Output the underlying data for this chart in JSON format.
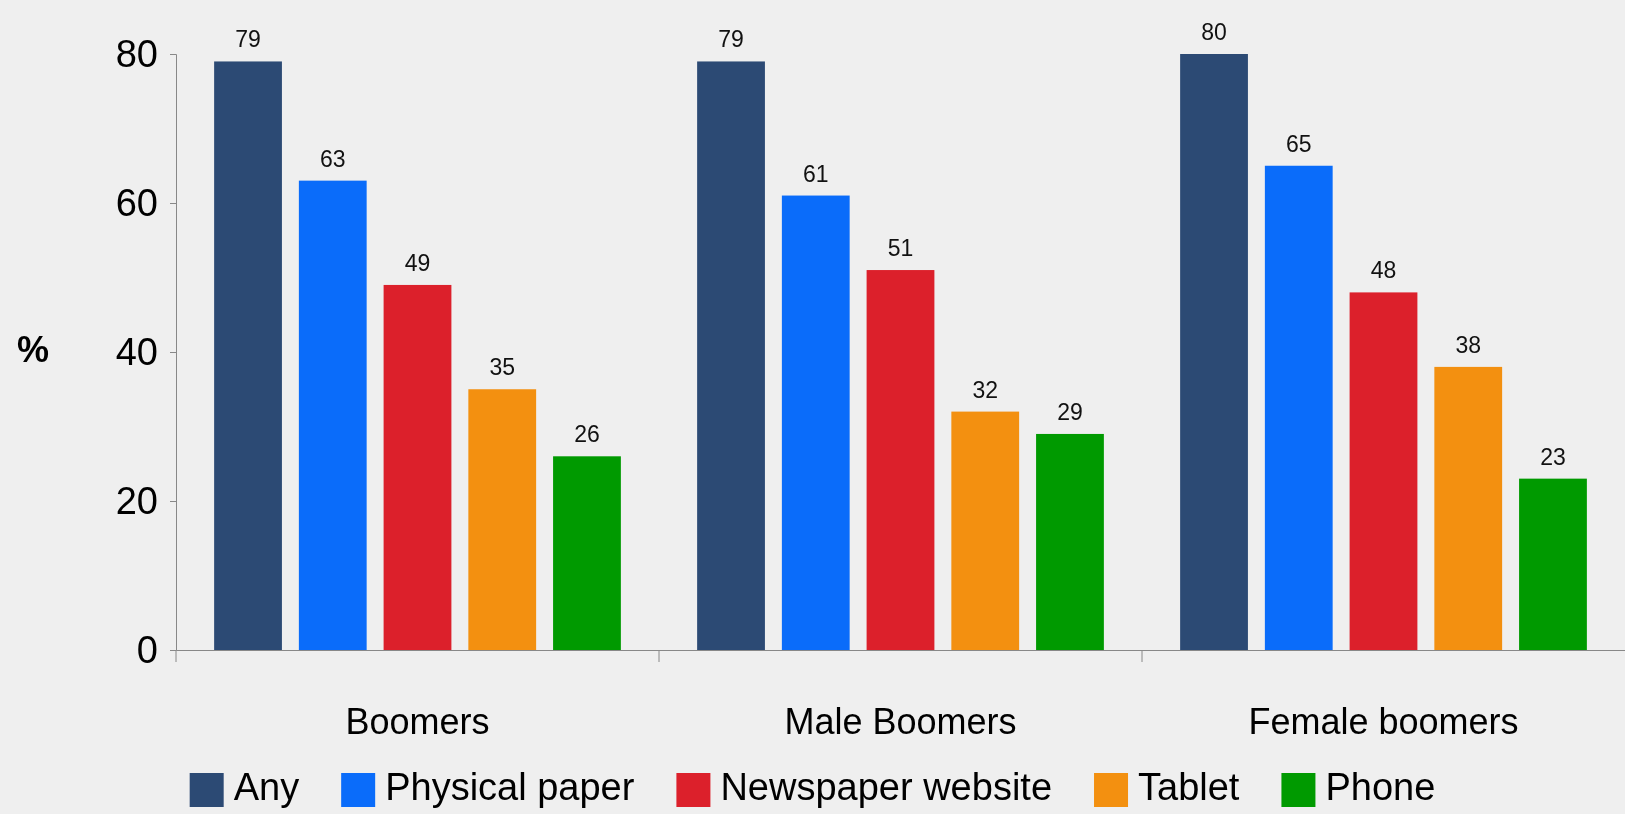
{
  "chart_data": {
    "type": "bar",
    "ylabel": "%",
    "categories": [
      "Boomers",
      "Male Boomers",
      "Female boomers"
    ],
    "series": [
      {
        "name": "Any",
        "color": "#2c4a74",
        "values": [
          79,
          79,
          80
        ]
      },
      {
        "name": "Physical paper",
        "color": "#0a6cfa",
        "values": [
          63,
          61,
          65
        ]
      },
      {
        "name": "Newspaper website",
        "color": "#dc202b",
        "values": [
          49,
          51,
          48
        ]
      },
      {
        "name": "Tablet",
        "color": "#f39010",
        "values": [
          35,
          32,
          38
        ]
      },
      {
        "name": "Phone",
        "color": "#009a00",
        "values": [
          26,
          29,
          23
        ]
      }
    ],
    "ylim": [
      0,
      80
    ],
    "yticks": [
      0,
      20,
      40,
      60,
      80
    ],
    "data_labels": true,
    "legend": "bottom",
    "grid": false
  }
}
